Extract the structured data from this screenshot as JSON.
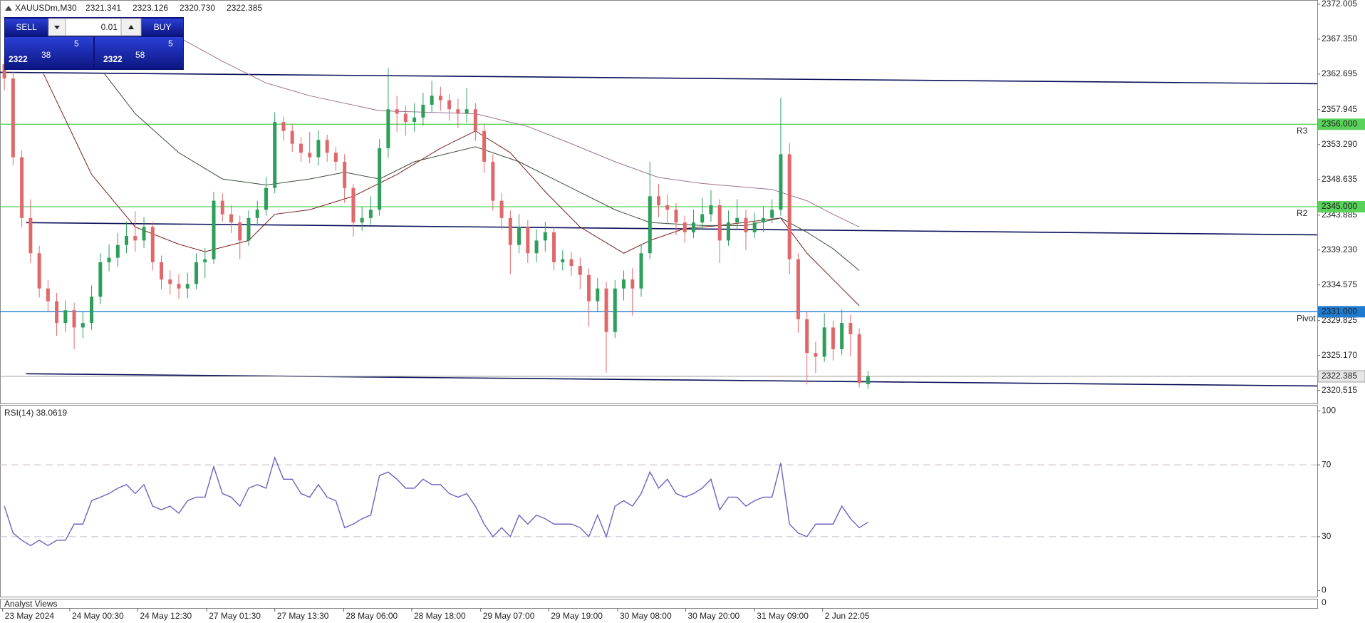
{
  "chart_data": {
    "type": "candlestick",
    "title": "XAUUSDm,M30",
    "ohlc_label": [
      "2321.341",
      "2323.126",
      "2320.730",
      "2322.385"
    ],
    "up_color": "#2e9e5b",
    "down_color": "#e0686a",
    "xlim": [
      -0.5,
      150.5
    ],
    "xticks": [
      {
        "value": -0.2,
        "label": "23 May 2024"
      },
      {
        "value": 7.5,
        "label": "24 May 00:30"
      },
      {
        "value": 15.3,
        "label": "24 May 12:30"
      },
      {
        "value": 23.2,
        "label": "27 May 01:30"
      },
      {
        "value": 31,
        "label": "27 May 13:30"
      },
      {
        "value": 38.9,
        "label": "28 May 06:00"
      },
      {
        "value": 46.7,
        "label": "28 May 18:00"
      },
      {
        "value": 54.6,
        "label": "29 May 07:00"
      },
      {
        "value": 62.4,
        "label": "29 May 19:00"
      },
      {
        "value": 70.3,
        "label": "30 May 08:00"
      },
      {
        "value": 78.1,
        "label": "30 May 20:00"
      },
      {
        "value": 86,
        "label": "31 May 09:00"
      },
      {
        "value": 93.8,
        "label": "2 Jun 22:05"
      }
    ],
    "ylim": [
      2318.77,
      2372.47
    ],
    "yticks": [
      2372.005,
      {
        "value": 2367.35,
        "label": "2367.350"
      },
      2362.695,
      2357.945,
      {
        "value": 2353.29,
        "label": "2353.290"
      },
      2348.635,
      2343.885,
      {
        "value": 2339.23,
        "label": "2339.230"
      },
      2334.575,
      2329.825,
      {
        "value": 2325.17,
        "label": "2325.170"
      },
      2320.515
    ],
    "open": [
      2364.0,
      2362.1,
      2351.6,
      2343.5,
      2338.8,
      2334.1,
      2332.4,
      2329.5,
      2331.2,
      2328.9,
      2329.5,
      2333.0,
      2337.6,
      2338.2,
      2339.9,
      2341.1,
      2340.5,
      2342.3,
      2337.6,
      2335.3,
      2334.7,
      2334.1,
      2334.7,
      2337.6,
      2338.0,
      2345.8,
      2344.0,
      2342.9,
      2340.5,
      2343.5,
      2344.6,
      2347.5,
      2356.3,
      2355.1,
      2353.4,
      2352.2,
      2351.6,
      2353.9,
      2352.2,
      2351.0,
      2347.5,
      2342.9,
      2343.5,
      2344.6,
      2352.8,
      2358.0,
      2357.4,
      2356.3,
      2356.9,
      2358.6,
      2359.8,
      2359.2,
      2358.0,
      2357.4,
      2358.0,
      2355.1,
      2351.0,
      2345.8,
      2343.5,
      2339.9,
      2342.3,
      2338.8,
      2340.5,
      2341.6,
      2337.6,
      2338.0,
      2337.1,
      2335.9,
      2332.4,
      2334.1,
      2328.3,
      2334.1,
      2335.3,
      2334.1,
      2338.8,
      2346.4,
      2345.2,
      2344.6,
      2342.9,
      2341.6,
      2342.9,
      2344.0,
      2345.2,
      2340.5,
      2342.9,
      2343.5,
      2341.6,
      2342.9,
      2343.5,
      2344.6,
      2352.0,
      2338.0,
      2330.0,
      2325.5,
      2325.0,
      2328.9,
      2326.0,
      2329.5,
      2328.0,
      2321.341
    ],
    "high": [
      2365.0,
      2363.0,
      2352.5,
      2346.0,
      2339.8,
      2335.2,
      2333.5,
      2332.5,
      2332.2,
      2331.0,
      2334.5,
      2338.8,
      2340.0,
      2341.5,
      2343.0,
      2344.4,
      2343.6,
      2343.0,
      2338.5,
      2336.5,
      2336.0,
      2336.2,
      2338.8,
      2339.5,
      2347.0,
      2346.8,
      2345.2,
      2343.8,
      2344.5,
      2345.8,
      2349.0,
      2357.6,
      2357.0,
      2356.0,
      2354.3,
      2355.0,
      2355.2,
      2354.6,
      2353.0,
      2352.0,
      2348.0,
      2345.0,
      2346.4,
      2354.0,
      2363.5,
      2359.8,
      2358.5,
      2358.8,
      2360.2,
      2361.8,
      2361.0,
      2360.0,
      2359.4,
      2360.8,
      2358.8,
      2356.0,
      2352.0,
      2346.8,
      2344.5,
      2344.0,
      2343.2,
      2342.0,
      2343.0,
      2342.2,
      2339.2,
      2339.0,
      2338.2,
      2336.8,
      2335.5,
      2335.0,
      2335.2,
      2336.5,
      2336.8,
      2340.0,
      2351.0,
      2348.0,
      2346.6,
      2345.5,
      2343.8,
      2344.6,
      2346.2,
      2347.2,
      2346.0,
      2344.5,
      2346.0,
      2344.6,
      2344.2,
      2345.0,
      2346.0,
      2359.5,
      2353.5,
      2338.8,
      2331.0,
      2327.0,
      2330.8,
      2329.8,
      2331.3,
      2330.6,
      2328.8,
      2323.126
    ],
    "low": [
      2360.5,
      2350.5,
      2342.3,
      2337.5,
      2332.9,
      2331.0,
      2327.8,
      2328.3,
      2326.0,
      2327.5,
      2328.6,
      2332.0,
      2336.4,
      2337.0,
      2338.8,
      2339.0,
      2339.5,
      2336.5,
      2334.0,
      2333.3,
      2332.7,
      2332.8,
      2334.0,
      2335.5,
      2337.4,
      2343.0,
      2341.5,
      2338.0,
      2339.8,
      2342.5,
      2343.8,
      2346.8,
      2353.8,
      2352.3,
      2351.0,
      2350.8,
      2350.5,
      2351.0,
      2349.8,
      2345.5,
      2341.0,
      2341.8,
      2342.6,
      2343.8,
      2351.5,
      2355.0,
      2354.5,
      2355.0,
      2355.8,
      2357.6,
      2357.8,
      2356.5,
      2355.5,
      2356.2,
      2353.8,
      2349.5,
      2344.5,
      2342.0,
      2336.0,
      2338.8,
      2337.5,
      2337.6,
      2339.0,
      2336.5,
      2336.5,
      2335.8,
      2334.0,
      2329.0,
      2331.0,
      2322.9,
      2327.5,
      2332.5,
      2330.5,
      2333.0,
      2338.0,
      2343.6,
      2342.6,
      2341.2,
      2340.2,
      2340.8,
      2342.0,
      2343.0,
      2337.5,
      2339.8,
      2342.0,
      2339.2,
      2340.8,
      2341.6,
      2342.8,
      2343.8,
      2336.0,
      2328.2,
      2321.3,
      2322.8,
      2324.3,
      2324.5,
      2325.2,
      2325.0,
      2320.9,
      2320.73
    ],
    "close": [
      2362.1,
      2351.6,
      2343.5,
      2338.8,
      2334.1,
      2332.4,
      2329.5,
      2331.2,
      2328.9,
      2329.5,
      2333.0,
      2337.6,
      2338.2,
      2339.9,
      2341.1,
      2340.5,
      2342.3,
      2337.6,
      2335.3,
      2334.7,
      2334.1,
      2334.7,
      2337.6,
      2338.0,
      2345.8,
      2344.0,
      2342.9,
      2340.5,
      2343.5,
      2344.6,
      2347.5,
      2356.3,
      2355.1,
      2353.4,
      2352.2,
      2351.6,
      2353.9,
      2352.2,
      2351.0,
      2347.5,
      2342.9,
      2343.5,
      2344.6,
      2352.8,
      2358.0,
      2357.4,
      2356.3,
      2356.9,
      2358.6,
      2359.8,
      2359.2,
      2358.0,
      2357.4,
      2358.0,
      2355.1,
      2351.0,
      2345.8,
      2343.5,
      2339.9,
      2342.3,
      2338.8,
      2340.5,
      2341.6,
      2337.6,
      2338.0,
      2337.1,
      2335.9,
      2332.4,
      2334.1,
      2328.3,
      2334.1,
      2335.3,
      2334.1,
      2338.8,
      2346.4,
      2345.2,
      2344.6,
      2342.9,
      2341.6,
      2342.9,
      2344.0,
      2345.2,
      2340.5,
      2342.9,
      2343.5,
      2341.6,
      2342.9,
      2343.5,
      2344.6,
      2352.0,
      2338.0,
      2330.0,
      2325.5,
      2325.0,
      2328.9,
      2326.0,
      2329.5,
      2328.0,
      2321.5,
      2322.385
    ],
    "indicators": [
      {
        "color": "#7a1f1f",
        "x": [
          4.5,
          10,
          15,
          20,
          23,
          28,
          31,
          35,
          40,
          45,
          50,
          54,
          58,
          62,
          66,
          71,
          74,
          78,
          82,
          89,
          92,
          95,
          98
        ],
        "values": [
          2362.7,
          2349.3,
          2342.3,
          2340.0,
          2339.0,
          2340.5,
          2344.0,
          2344.6,
          2346.4,
          2349.3,
          2352.8,
          2355.1,
          2352.2,
          2347.0,
          2342.3,
          2338.8,
          2340.5,
          2342.1,
          2342.5,
          2343.5,
          2338.8,
          2335.3,
          2331.8
        ]
      },
      {
        "color": "#3d4d3d",
        "x": [
          11.5,
          15,
          20,
          25,
          30,
          35,
          39,
          43,
          47,
          54,
          59,
          65,
          70,
          74,
          80,
          85,
          89,
          92,
          95,
          98
        ],
        "values": [
          2362.7,
          2357.4,
          2352.2,
          2348.7,
          2347.9,
          2348.7,
          2349.6,
          2348.7,
          2351.0,
          2353.0,
          2351.0,
          2347.5,
          2344.6,
          2342.9,
          2342.5,
          2342.5,
          2343.5,
          2341.6,
          2339.4,
          2336.5
        ]
      },
      {
        "color": "#9a7390",
        "x": [
          19.5,
          25,
          30,
          35,
          43,
          54,
          60,
          65,
          70,
          75,
          80,
          88,
          92,
          95,
          98
        ],
        "values": [
          2367.9,
          2364.4,
          2361.5,
          2359.8,
          2357.8,
          2357.4,
          2355.7,
          2353.4,
          2351.0,
          2348.9,
          2348.1,
          2347.3,
          2345.8,
          2344.0,
          2342.3
        ]
      }
    ],
    "trendlines": [
      {
        "color": "#0a0f5a",
        "x": [
          -0.5,
          150.5
        ],
        "y": [
          2362.92,
          2361.4
        ]
      },
      {
        "color": "#0a0f5a",
        "x": [
          2.5,
          150.5
        ],
        "y": [
          2342.88,
          2341.25
        ]
      },
      {
        "color": "#0a0f5a",
        "x": [
          2.5,
          150.5
        ],
        "y": [
          2322.73,
          2321.1
        ]
      }
    ],
    "levels": [
      {
        "value": 2356,
        "label": "2356.000",
        "name": "R3",
        "color": "#59d259"
      },
      {
        "value": 2345,
        "label": "2345.000",
        "name": "R2",
        "color": "#59d259"
      },
      {
        "value": 2331,
        "label": "2331.000",
        "name": "Pivot",
        "color": "#1f7bd0"
      }
    ],
    "current_price": {
      "value": 2322.385,
      "label": "2322.385",
      "color": "#a0a0a0"
    },
    "rsi": {
      "label": "RSI(14) 38.0619",
      "color": "#7060c0",
      "ylim": [
        -3.4,
        103.4
      ],
      "yticks": [
        100,
        70,
        30,
        0
      ],
      "levels": [
        70,
        30
      ],
      "values": [
        47,
        32,
        28,
        25,
        28,
        25,
        28,
        28,
        37,
        37,
        50,
        52,
        54,
        57,
        59,
        54,
        59,
        47,
        45,
        47,
        43,
        50,
        52,
        52,
        69,
        54,
        52,
        47,
        57,
        59,
        57,
        74,
        62,
        62,
        54,
        52,
        59,
        52,
        50,
        35,
        37,
        40,
        42,
        64,
        66,
        62,
        57,
        57,
        62,
        59,
        59,
        54,
        52,
        54,
        47,
        37,
        30,
        35,
        30,
        42,
        37,
        42,
        40,
        37,
        37,
        37,
        35,
        30,
        42,
        30,
        47,
        50,
        47,
        54,
        66,
        57,
        62,
        54,
        52,
        54,
        57,
        62,
        45,
        52,
        52,
        47,
        50,
        52,
        52,
        71,
        37,
        32,
        30,
        37,
        37,
        37,
        47,
        40,
        35,
        38.0619
      ]
    },
    "analyst_panel": {
      "title": "Analyst Views",
      "yticks": [
        0
      ]
    }
  },
  "trade_panel": {
    "sell": "SELL",
    "buy": "BUY",
    "lot": "0.01",
    "bid": {
      "big": "2322",
      "pips": "38",
      "fraction": "5"
    },
    "ask": {
      "big": "2322",
      "pips": "58",
      "fraction": "5"
    }
  }
}
